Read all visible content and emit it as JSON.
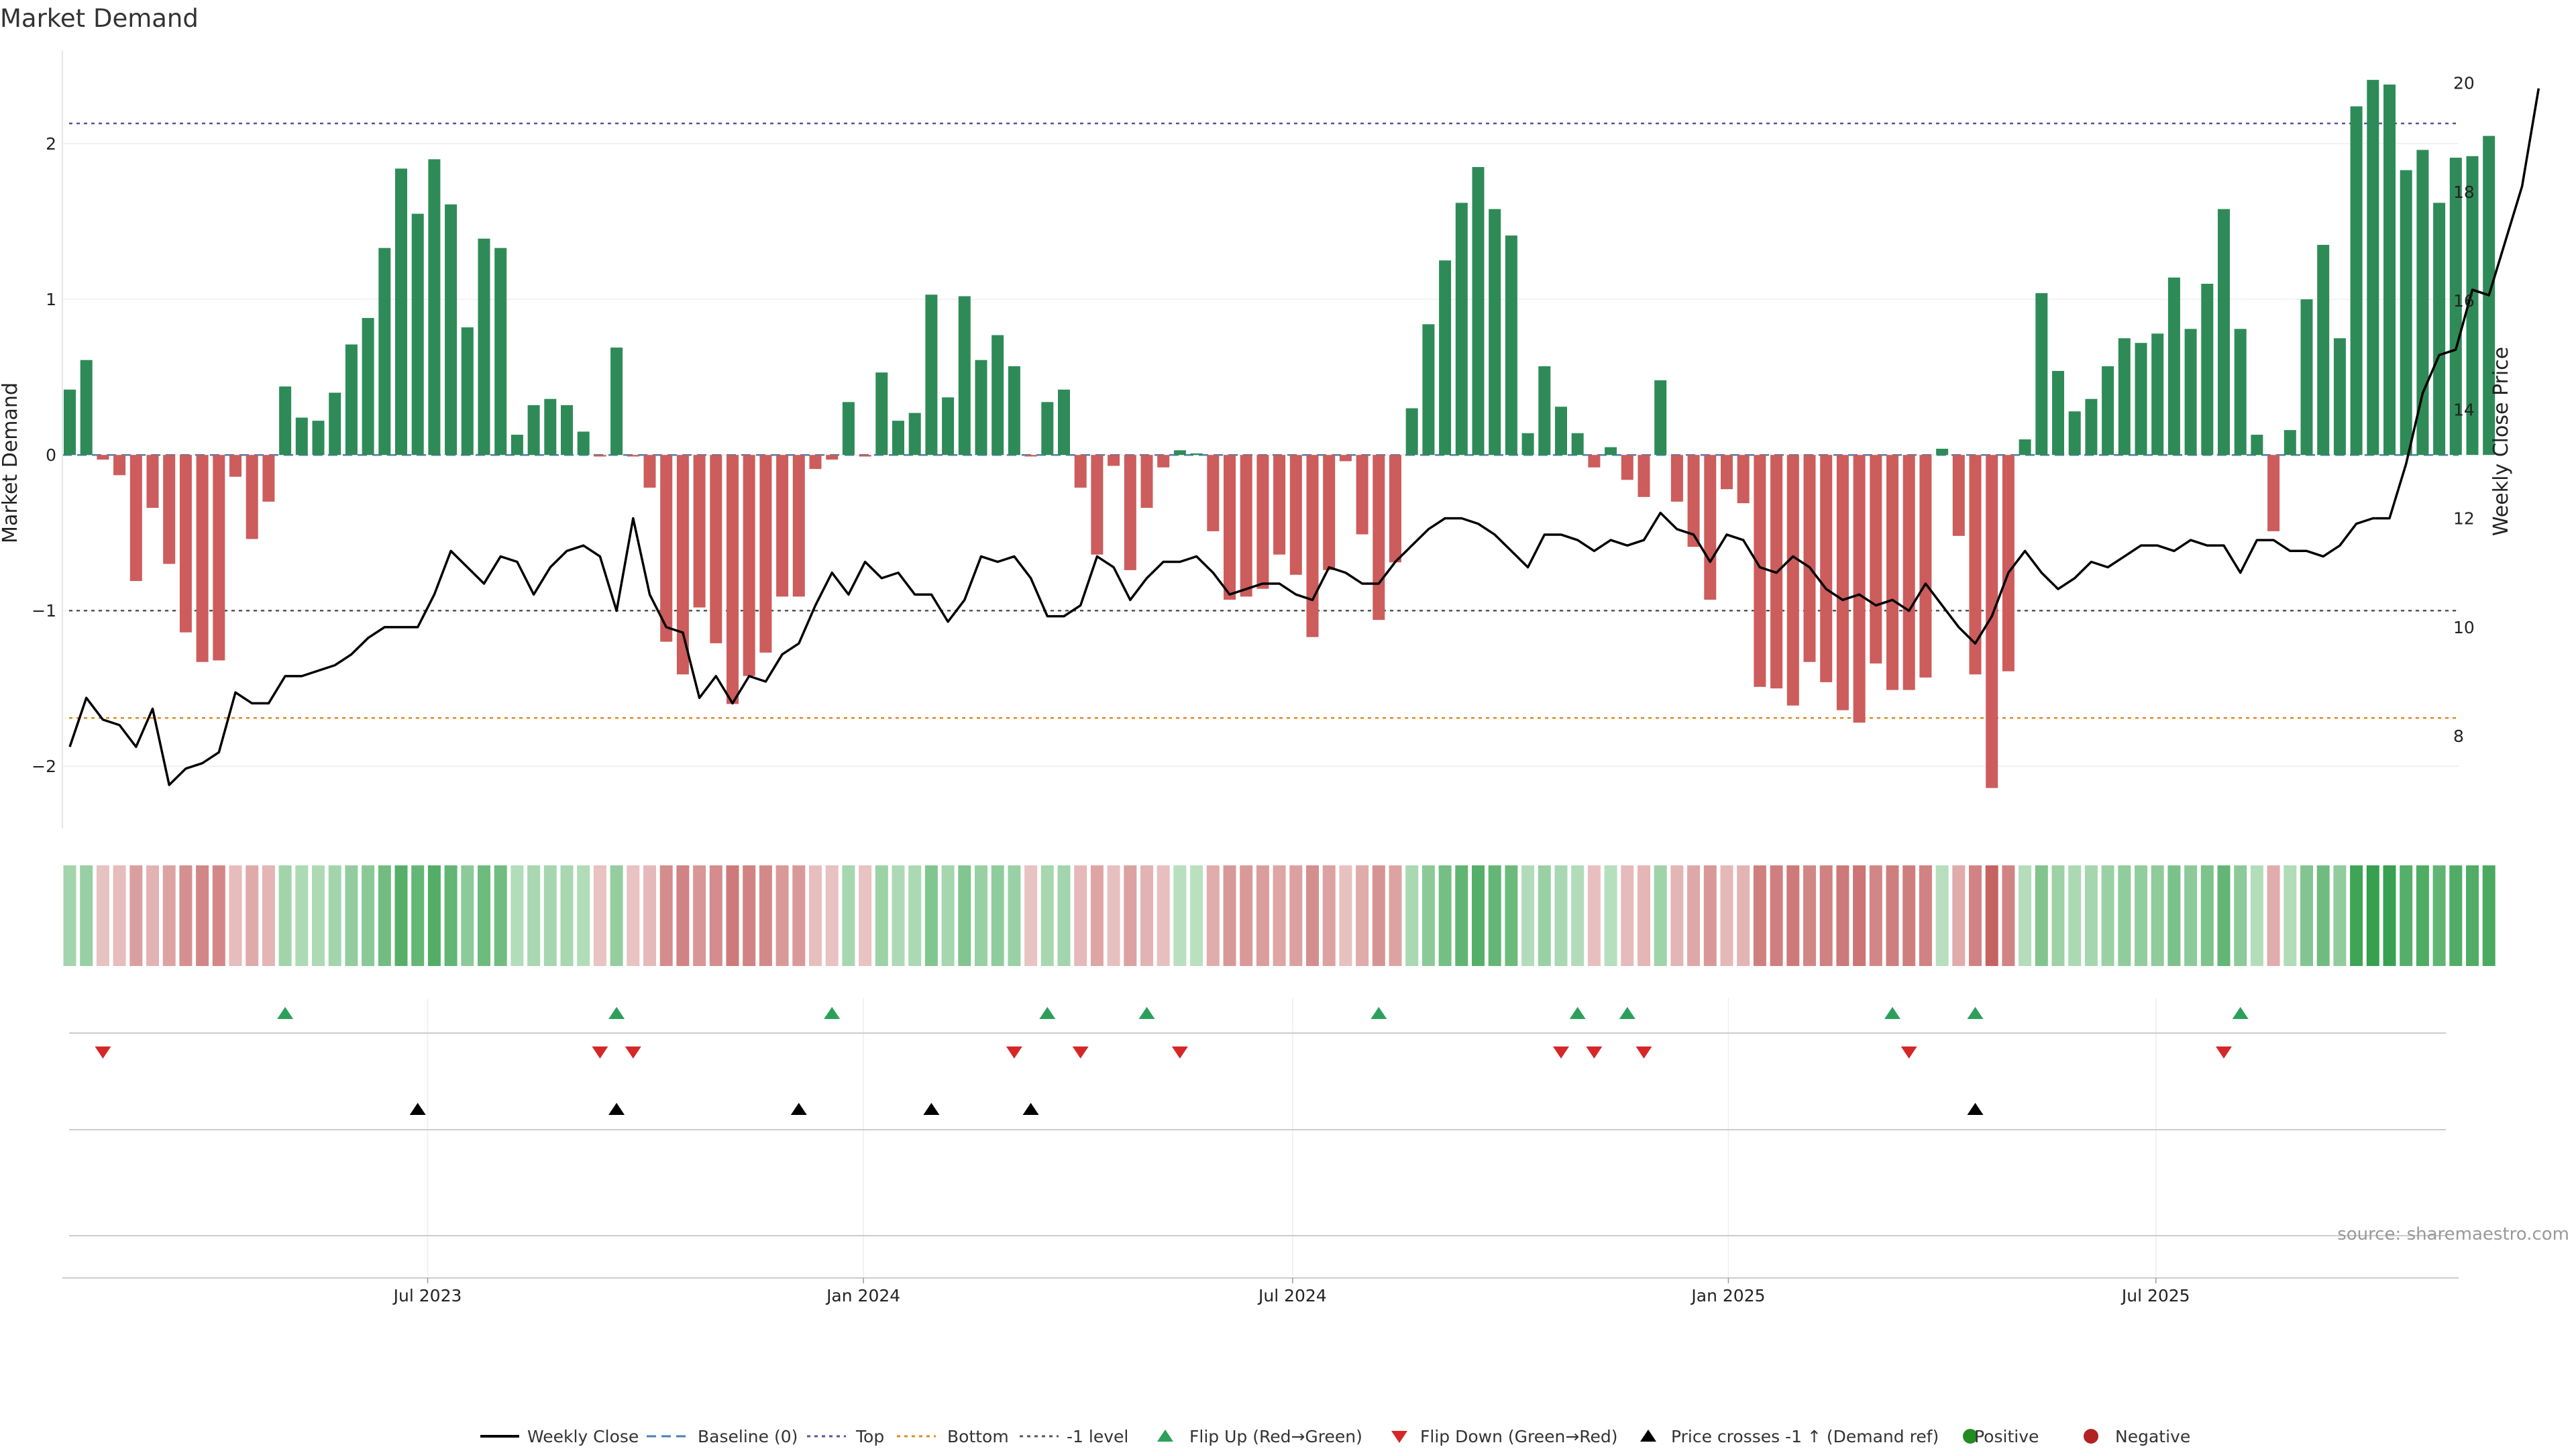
{
  "chart_data": {
    "type": "bar",
    "title": "Market Demand",
    "ylabel": "Market Demand",
    "y2label": "Weekly Close Price",
    "ylim": [
      -2.4,
      2.6
    ],
    "y2lim": [
      6.3,
      20.6
    ],
    "yticks": [
      -2,
      -1,
      0,
      1,
      2
    ],
    "y2ticks": [
      8,
      10,
      12,
      14,
      16,
      18,
      20
    ],
    "x_start_week_offset": 0,
    "xticks": [
      {
        "label": "Jul 2023",
        "week": 21.6
      },
      {
        "label": "Jan 2024",
        "week": 47.9
      },
      {
        "label": "Jul 2024",
        "week": 73.8
      },
      {
        "label": "Jan 2025",
        "week": 100.1
      },
      {
        "label": "Jul 2025",
        "week": 125.9
      }
    ],
    "reference_lines": {
      "top": 2.13,
      "bottom": -1.69,
      "minus_one": -1.0,
      "baseline": 0
    },
    "demand": [
      0.42,
      0.61,
      -0.03,
      -0.13,
      -0.81,
      -0.34,
      -0.7,
      -1.14,
      -1.33,
      -1.32,
      -0.14,
      -0.54,
      -0.3,
      0.44,
      0.24,
      0.22,
      0.4,
      0.71,
      0.88,
      1.33,
      1.84,
      1.55,
      1.9,
      1.61,
      0.82,
      1.39,
      1.33,
      0.13,
      0.32,
      0.36,
      0.32,
      0.15,
      -0.01,
      0.69,
      -0.01,
      -0.21,
      -1.2,
      -1.41,
      -0.98,
      -1.21,
      -1.6,
      -1.42,
      -1.27,
      -0.91,
      -0.91,
      -0.09,
      -0.03,
      0.34,
      -0.01,
      0.53,
      0.22,
      0.27,
      1.03,
      0.37,
      1.02,
      0.61,
      0.77,
      0.57,
      -0.01,
      0.34,
      0.42,
      -0.21,
      -0.64,
      -0.07,
      -0.74,
      -0.34,
      -0.08,
      0.03,
      0.01,
      -0.49,
      -0.93,
      -0.91,
      -0.86,
      -0.64,
      -0.77,
      -1.17,
      -0.74,
      -0.04,
      -0.51,
      -1.06,
      -0.69,
      0.3,
      0.84,
      1.25,
      1.62,
      1.85,
      1.58,
      1.41,
      0.14,
      0.57,
      0.31,
      0.14,
      -0.08,
      0.05,
      -0.16,
      -0.27,
      0.48,
      -0.3,
      -0.59,
      -0.93,
      -0.22,
      -0.31,
      -1.49,
      -1.5,
      -1.61,
      -1.33,
      -1.46,
      -1.64,
      -1.72,
      -1.34,
      -1.51,
      -1.51,
      -1.43,
      0.04,
      -0.52,
      -1.41,
      -2.14,
      -1.39,
      0.1,
      1.04,
      0.54,
      0.28,
      0.36,
      0.57,
      0.75,
      0.72,
      0.78,
      1.14,
      0.81,
      1.1,
      1.58,
      0.81,
      0.13,
      -0.49,
      0.16,
      1.0,
      1.35,
      0.75,
      2.24,
      2.41,
      2.38,
      1.83,
      1.96,
      1.62,
      1.91,
      1.92,
      2.05
    ],
    "close": [
      7.8,
      8.7,
      8.3,
      8.2,
      7.8,
      8.5,
      7.1,
      7.4,
      7.5,
      7.7,
      8.8,
      8.6,
      8.6,
      9.1,
      9.1,
      9.2,
      9.3,
      9.5,
      9.8,
      10.0,
      10.0,
      10.0,
      10.6,
      11.4,
      11.1,
      10.8,
      11.3,
      11.2,
      10.6,
      11.1,
      11.4,
      11.5,
      11.3,
      10.3,
      12.0,
      10.6,
      10.0,
      9.9,
      8.7,
      9.1,
      8.6,
      9.1,
      9.0,
      9.5,
      9.7,
      10.4,
      11.0,
      10.6,
      11.2,
      10.9,
      11.0,
      10.6,
      10.6,
      10.1,
      10.5,
      11.3,
      11.2,
      11.3,
      10.9,
      10.2,
      10.2,
      10.4,
      11.3,
      11.1,
      10.5,
      10.9,
      11.2,
      11.2,
      11.3,
      11.0,
      10.6,
      10.7,
      10.8,
      10.8,
      10.6,
      10.5,
      11.1,
      11.0,
      10.8,
      10.8,
      11.2,
      11.5,
      11.8,
      12.0,
      12.0,
      11.9,
      11.7,
      11.4,
      11.1,
      11.7,
      11.7,
      11.6,
      11.4,
      11.6,
      11.5,
      11.6,
      12.1,
      11.8,
      11.7,
      11.2,
      11.7,
      11.6,
      11.1,
      11.0,
      11.3,
      11.1,
      10.7,
      10.5,
      10.6,
      10.4,
      10.5,
      10.3,
      10.8,
      10.4,
      10.0,
      9.7,
      10.2,
      11.0,
      11.4,
      11.0,
      10.7,
      10.9,
      11.2,
      11.1,
      11.3,
      11.5,
      11.5,
      11.4,
      11.6,
      11.5,
      11.5,
      11.0,
      11.6,
      11.6,
      11.4,
      11.4,
      11.3,
      11.5,
      11.9,
      12.0,
      12.0,
      13.0,
      14.3,
      15.0,
      15.1,
      16.2,
      16.1,
      17.1,
      18.1,
      19.9
    ],
    "flip_up_weeks": [
      13,
      33,
      46,
      59,
      65,
      79,
      91,
      94,
      110,
      115,
      131
    ],
    "flip_down_weeks": [
      2,
      32,
      34,
      57,
      61,
      67,
      90,
      92,
      95,
      111,
      130
    ],
    "price_cross_weeks": [
      21,
      33,
      44,
      52,
      58,
      115
    ],
    "source": "source: sharemaestro.com",
    "legend": [
      {
        "label": "Weekly Close",
        "style": "line",
        "color": "#000000"
      },
      {
        "label": "Baseline (0)",
        "style": "dash",
        "color": "#4a7fb0"
      },
      {
        "label": "Top",
        "style": "dot",
        "color": "#5a4fa0"
      },
      {
        "label": "Bottom",
        "style": "dot",
        "color": "#e08a1e"
      },
      {
        "label": "-1 level",
        "style": "dot",
        "color": "#555555"
      },
      {
        "label": "Flip Up (Red→Green)",
        "style": "tri-up",
        "color": "#2ca05a"
      },
      {
        "label": "Flip Down (Green→Red)",
        "style": "tri-down",
        "color": "#d62728"
      },
      {
        "label": "Price crosses -1 ↑ (Demand ref)",
        "style": "tri-up",
        "color": "#000000"
      },
      {
        "label": "Positive",
        "style": "circle",
        "color": "#228b22"
      },
      {
        "label": "Negative",
        "style": "circle",
        "color": "#b22222"
      }
    ],
    "colors": {
      "positive": "#2e8b57",
      "negative": "#cd5c5c",
      "price": "#000000",
      "top": "#5a4fa0",
      "bottom": "#e08a1e",
      "minus_one": "#555555",
      "baseline": "#4a7fb0",
      "flip_up": "#2ca05a",
      "flip_down": "#d62728",
      "cross": "#000000"
    }
  }
}
